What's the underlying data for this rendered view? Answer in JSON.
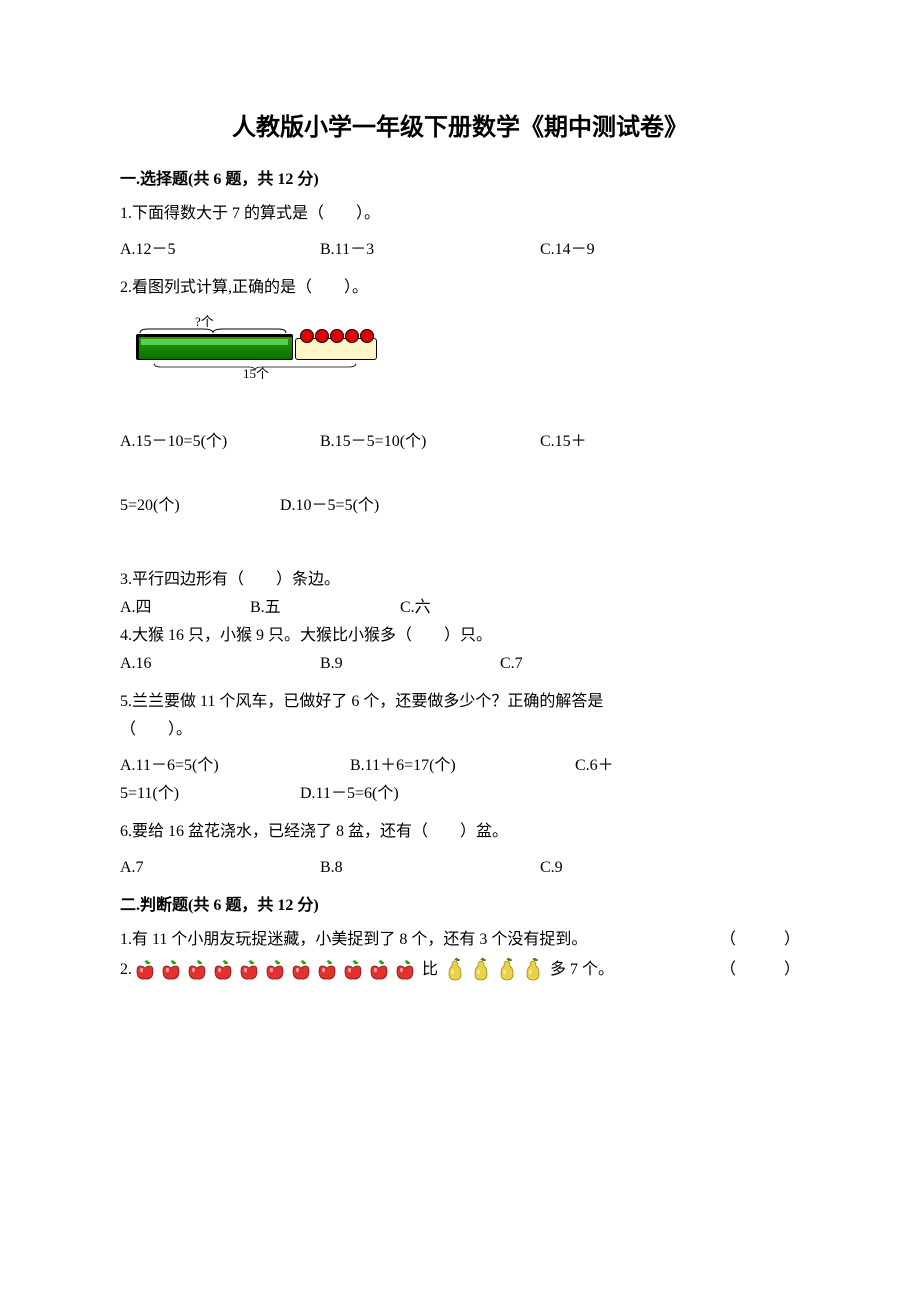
{
  "title": "人教版小学一年级下册数学《期中测试卷》",
  "section1": {
    "header": "一.选择题(共 6 题，共 12 分)",
    "q1": {
      "text": "1.下面得数大于 7 的算式是（　　）。",
      "A": "A.12－5",
      "B": "B.11－3",
      "C": "C.14－9"
    },
    "q2": {
      "text": "2.看图列式计算,正确的是（　　）。",
      "fig": {
        "top_label": "?个",
        "bottom_label": "15个",
        "ball_count": 5
      },
      "A": "A.15－10=5(个)",
      "B": "B.15－5=10(个)",
      "C": "C.15＋",
      "line2a": "5=20(个)",
      "D": "D.10－5=5(个)"
    },
    "q3": {
      "text": "3.平行四边形有（　　）条边。",
      "A": "A.四",
      "B": "B.五",
      "C": "C.六"
    },
    "q4": {
      "text": "4.大猴 16 只，小猴 9 只。大猴比小猴多（　　）只。",
      "A": "A.16",
      "B": "B.9",
      "C": "C.7"
    },
    "q5": {
      "text_l1": "5.兰兰要做 11 个风车，已做好了 6 个，还要做多少个？正确的解答是",
      "text_l2": "（　　）。",
      "A": "A.11－6=5(个)",
      "B": "B.11＋6=17(个)",
      "C": "C.6＋",
      "line2a": "5=11(个)",
      "D": "D.11－5=6(个)"
    },
    "q6": {
      "text": "6.要给 16 盆花浇水，已经浇了 8 盆，还有（　　）盆。",
      "A": "A.7",
      "B": "B.8",
      "C": "C.9"
    }
  },
  "section2": {
    "header": "二.判断题(共 6 题，共 12 分)",
    "q1": {
      "text": "1.有 11 个小朋友玩捉迷藏，小美捉到了 8 个，还有 3 个没有捉到。",
      "blank": "（　　　）"
    },
    "q2": {
      "prefix": "2.",
      "mid": "比",
      "suffix": "多 7 个。",
      "blank": "（　　　）",
      "apple_count": 11,
      "pear_count": 4,
      "apple_color": "#e53030",
      "apple_leaf": "#2aa000",
      "pear_color": "#e9d24a",
      "pear_leaf": "#4a7c00"
    }
  }
}
